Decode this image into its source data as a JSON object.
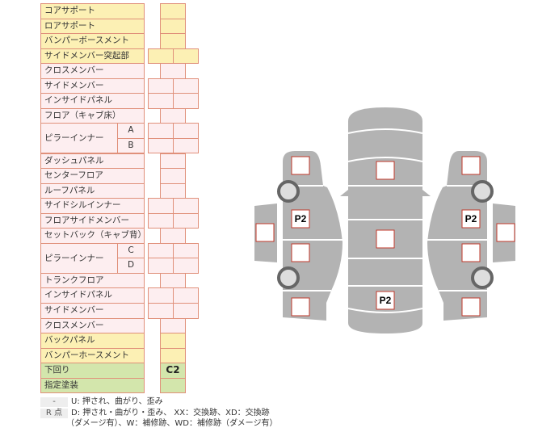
{
  "rows": [
    {
      "label": "コアサポート",
      "color": "y",
      "cols": 1
    },
    {
      "label": "ロアサポート",
      "color": "y",
      "cols": 1
    },
    {
      "label": "バンパーボースメント",
      "color": "y",
      "cols": 1
    },
    {
      "label": "サイドメンバー突起部",
      "color": "y",
      "cols": 2
    },
    {
      "label": "クロスメンバー",
      "color": "p",
      "cols": 1
    },
    {
      "label": "サイドメンバー",
      "color": "p",
      "cols": 2
    },
    {
      "label": "インサイドパネル",
      "color": "p",
      "cols": 2
    },
    {
      "label": "フロア（キャブ床）",
      "color": "p",
      "cols": 1
    },
    {
      "label": "ピラーインナー",
      "sub": "A",
      "color": "p",
      "cols": 2
    },
    {
      "label": "",
      "sub": "B",
      "color": "p",
      "cols": 2
    },
    {
      "label": "ダッシュパネル",
      "color": "p",
      "cols": 1
    },
    {
      "label": "センターフロア",
      "color": "p",
      "cols": 1
    },
    {
      "label": "ルーフパネル",
      "color": "p",
      "cols": 1
    },
    {
      "label": "サイドシルインナー",
      "color": "p",
      "cols": 2
    },
    {
      "label": "フロアサイドメンバー",
      "color": "p",
      "cols": 2
    },
    {
      "label": "セットバック（キャブ背）",
      "color": "p",
      "cols": 1
    },
    {
      "label": "ピラーインナー",
      "sub": "C",
      "color": "p",
      "cols": 2
    },
    {
      "label": "",
      "sub": "D",
      "color": "p",
      "cols": 2
    },
    {
      "label": "トランクフロア",
      "color": "p",
      "cols": 1
    },
    {
      "label": "インサイドパネル",
      "color": "p",
      "cols": 2
    },
    {
      "label": "サイドメンバー",
      "color": "p",
      "cols": 2
    },
    {
      "label": "クロスメンバー",
      "color": "p",
      "cols": 1
    },
    {
      "label": "バックパネル",
      "color": "y",
      "cols": 1
    },
    {
      "label": "バンパーホースメント",
      "color": "y",
      "cols": 1
    },
    {
      "label": "下回り",
      "color": "g",
      "cols": 1,
      "value": "C2"
    },
    {
      "label": "指定塗装",
      "color": "g",
      "cols": 1
    }
  ],
  "legend": [
    {
      "key": "-",
      "text": "U: 押され、曲がり、歪み"
    },
    {
      "key": "R 点",
      "text": "D: 押され・曲がり・歪み、 XX：交換跡、XD：交換跡"
    },
    {
      "key": "",
      "text": "（ダメージ有）、W：補修跡、WD：補修跡（ダメージ有）"
    }
  ],
  "diagram": {
    "left_markers": [
      "",
      "P2",
      "",
      ""
    ],
    "left_outer_marker": "",
    "center_markers": [
      "",
      "",
      "P2"
    ],
    "right_markers": [
      "",
      "P2",
      "",
      ""
    ],
    "right_outer_marker": "",
    "body_color": "#b3b3b3",
    "marker_border": "#c0392b"
  }
}
